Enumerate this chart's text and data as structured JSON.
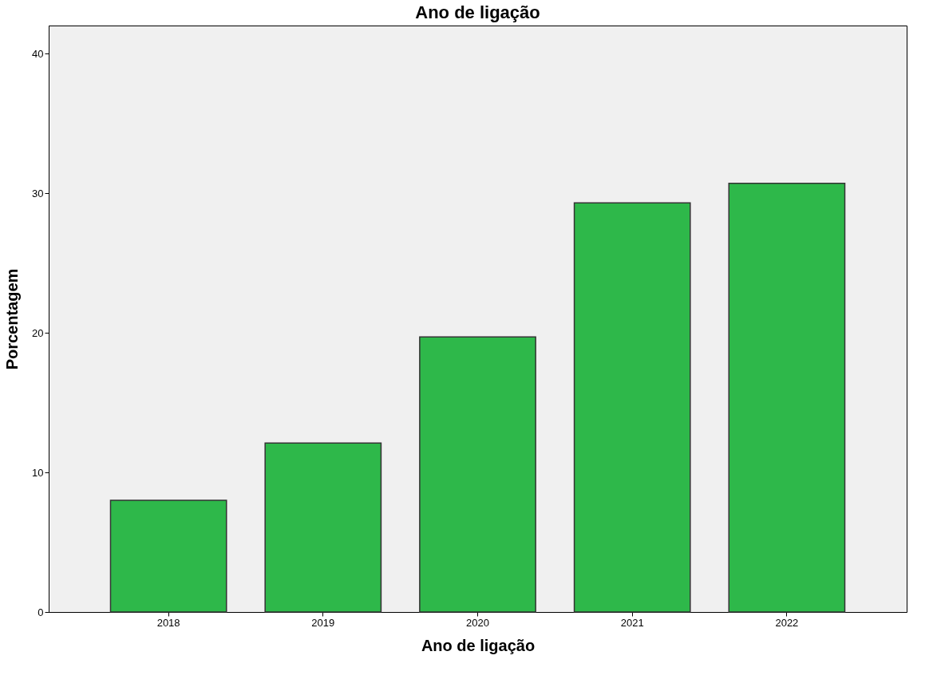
{
  "chart_data": {
    "type": "bar",
    "title": "Ano de ligação",
    "xlabel": "Ano de ligação",
    "ylabel": "Porcentagem",
    "categories": [
      "2018",
      "2019",
      "2020",
      "2021",
      "2022"
    ],
    "series": [
      {
        "color": "#2eb84a",
        "values": [
          8.0,
          12.1,
          19.7,
          29.3,
          30.7
        ]
      }
    ],
    "ylim": [
      0,
      42
    ],
    "yticks": [
      0,
      10,
      20,
      30,
      40
    ],
    "grid": false,
    "legend": false
  }
}
